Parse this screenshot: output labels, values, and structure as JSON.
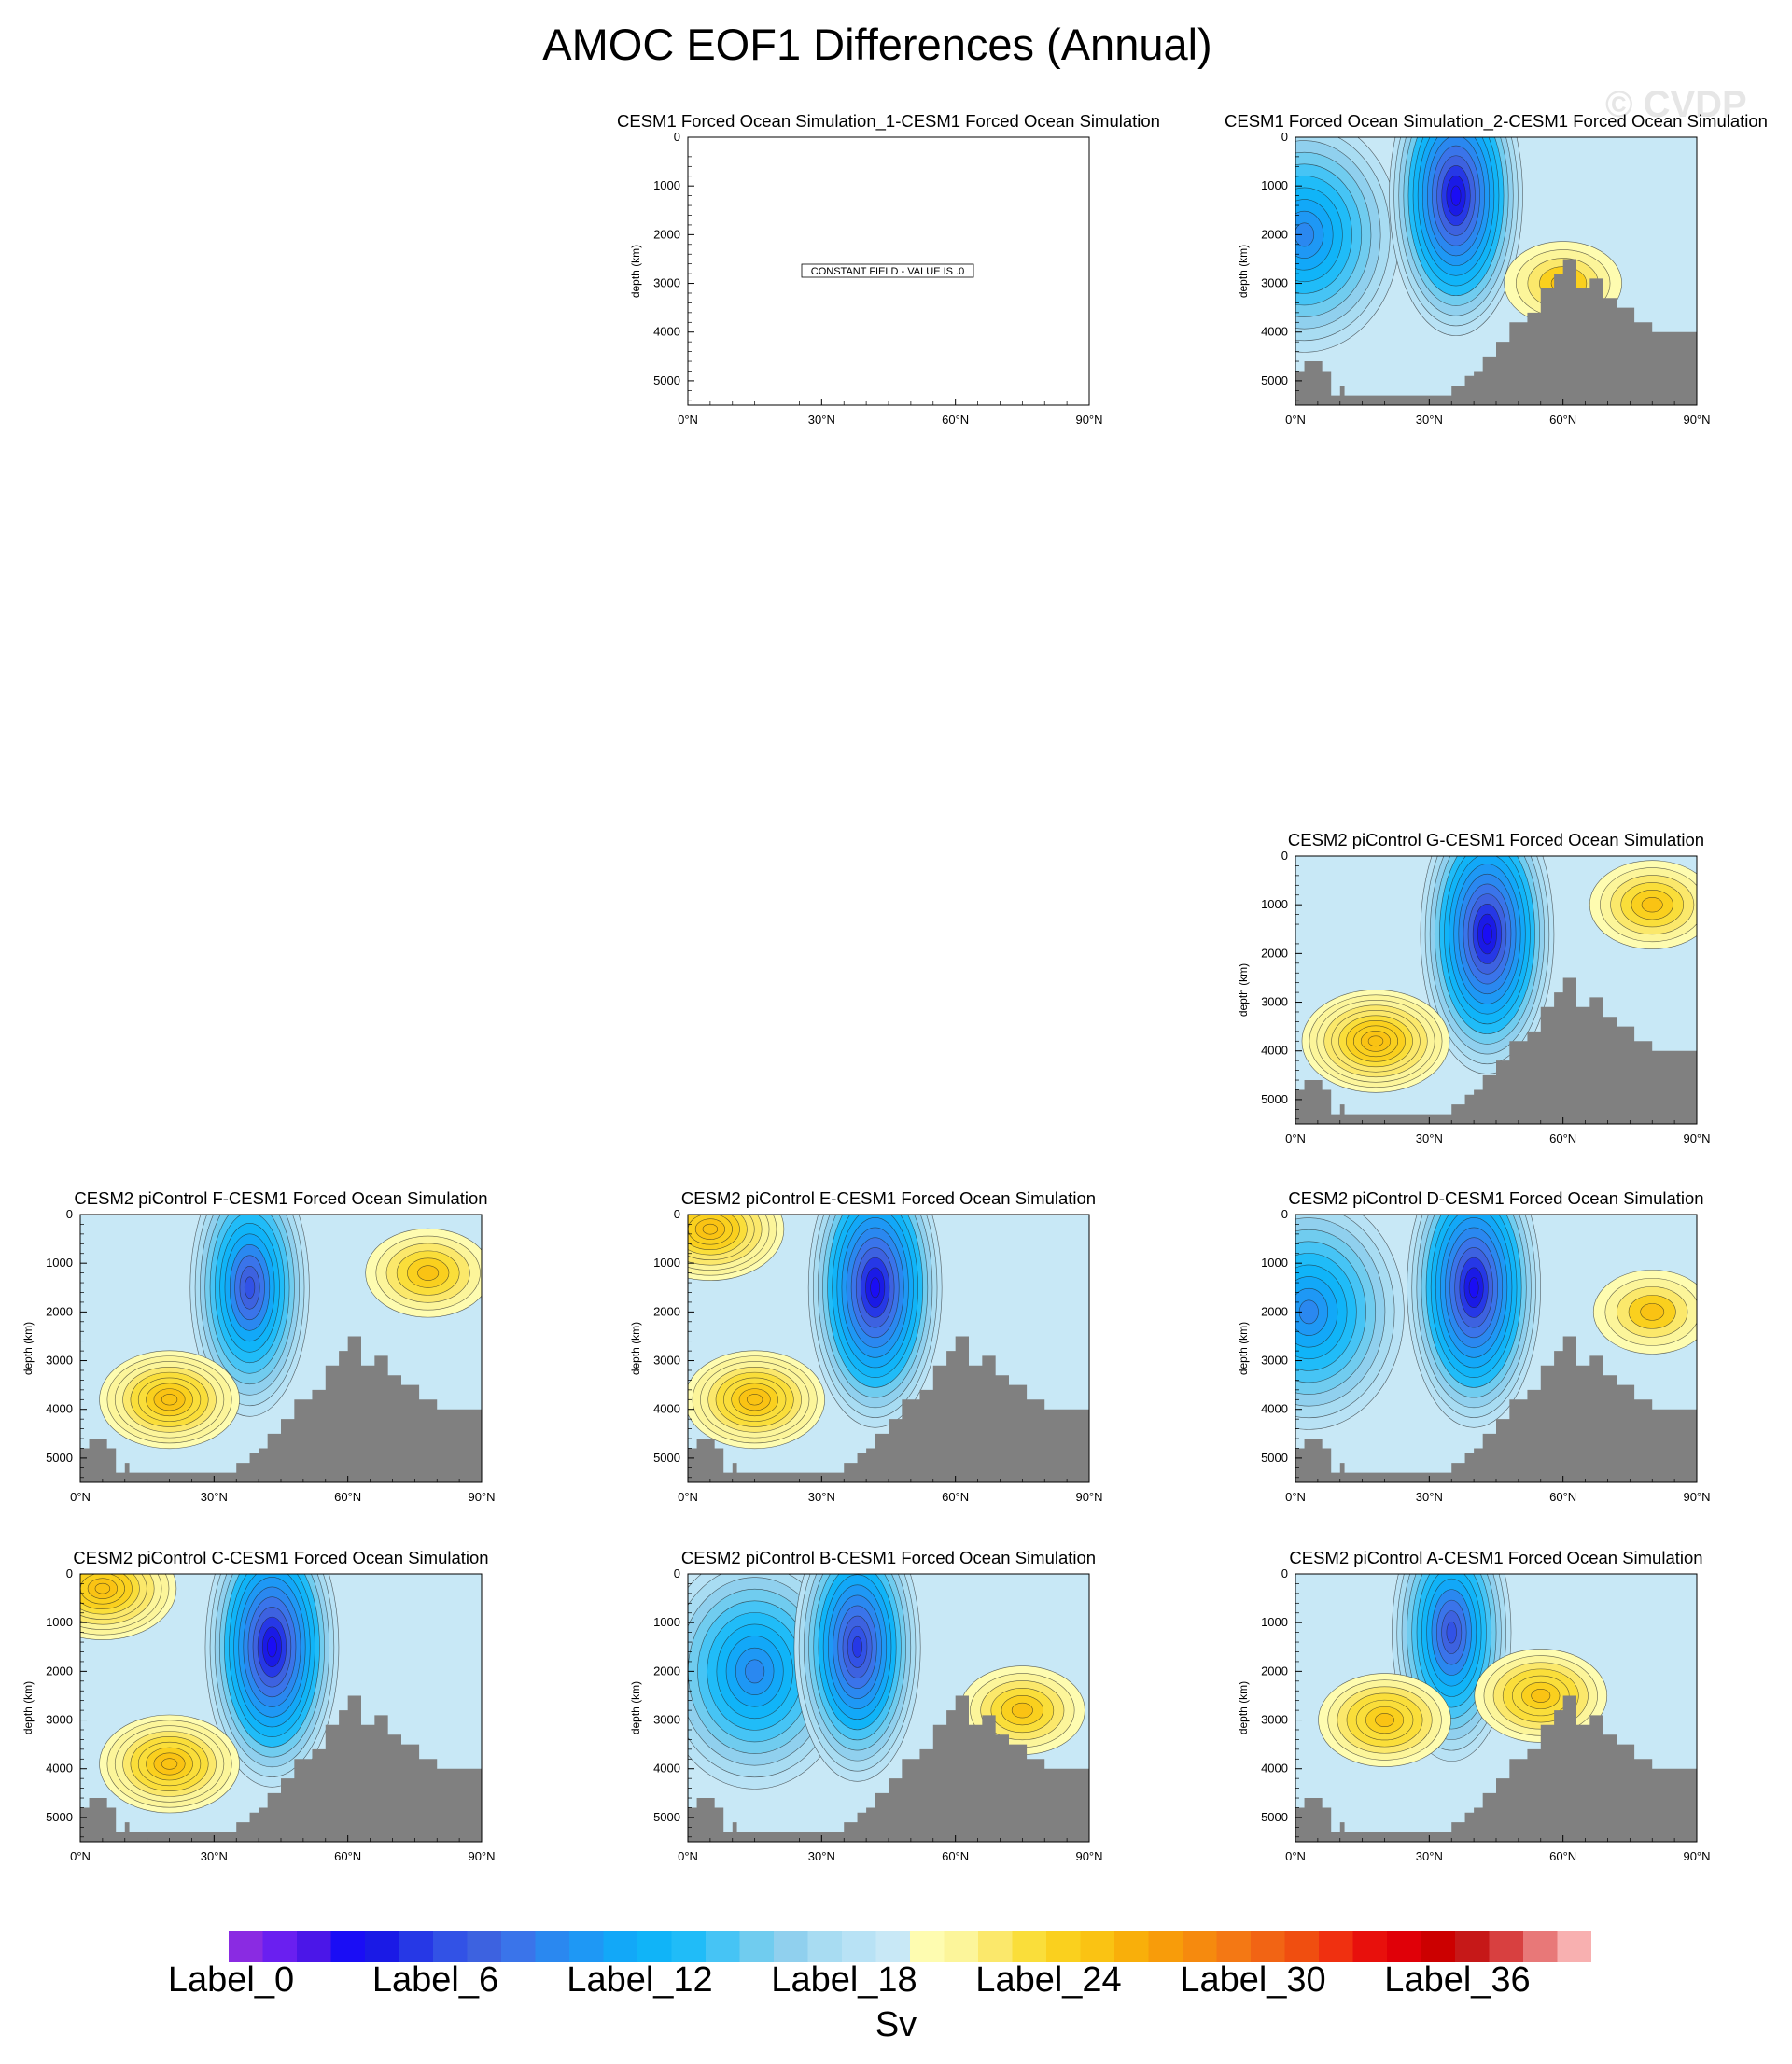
{
  "title": "AMOC EOF1 Differences (Annual)",
  "watermark": "© CVDP",
  "axes": {
    "ylabel": "depth (km)",
    "xticks": [
      "0°N",
      "30°N",
      "60°N",
      "90°N"
    ],
    "yticks": [
      "0",
      "1000",
      "2000",
      "3000",
      "4000",
      "5000"
    ],
    "xlim": [
      0,
      90
    ],
    "ylim": [
      0,
      5500
    ]
  },
  "colorbar": {
    "units": "Sv",
    "labels": [
      "Label_0",
      "Label_6",
      "Label_12",
      "Label_18",
      "Label_24",
      "Label_30",
      "Label_36"
    ],
    "colors": [
      "#8a2be2",
      "#6a1ff0",
      "#4b16e8",
      "#1a0df5",
      "#1a1ae6",
      "#2638e6",
      "#3252e6",
      "#3d62e0",
      "#3a74ea",
      "#2a88f0",
      "#1e98f5",
      "#12a8f8",
      "#10b4f8",
      "#20bcf8",
      "#46c4f5",
      "#70ccef",
      "#90d0ee",
      "#a8dcf2",
      "#b8e2f5",
      "#c8e8f6",
      "#fefcb0",
      "#fcf59a",
      "#fbe86b",
      "#fade3a",
      "#fad01e",
      "#fac313",
      "#f9af0a",
      "#f89c0a",
      "#f68a0e",
      "#f47814",
      "#f26414",
      "#f04e10",
      "#f03010",
      "#e8100c",
      "#e00008",
      "#cc0000",
      "#c61818",
      "#d84040",
      "#e87878",
      "#f8b0b0"
    ]
  },
  "chart_data": [
    {
      "type": "heatmap",
      "title": "CESM1 Forced Ocean Simulation_1-CESM1 Forced Ocean Simulation",
      "constant_field": true,
      "annotation": "CONSTANT FIELD - VALUE IS .0",
      "xlim": [
        0,
        90
      ],
      "ylim": [
        5500,
        0
      ],
      "ylabel": "depth (km)"
    },
    {
      "type": "heatmap",
      "title": "CESM1 Forced Ocean Simulation_2-CESM1 Forced Ocean Simulation",
      "xlim": [
        0,
        90
      ],
      "ylim": [
        5500,
        0
      ],
      "ylabel": "depth (km)",
      "features": [
        {
          "lat": 2,
          "depth": 2000,
          "sign": "negative",
          "strength": 0.6
        },
        {
          "lat": 36,
          "depth": 1200,
          "sign": "negative",
          "strength": 1.0
        },
        {
          "lat": 60,
          "depth": 3000,
          "sign": "positive",
          "strength": 0.2
        }
      ]
    },
    {
      "type": "heatmap",
      "title": "CESM2 piControl G-CESM1 Forced Ocean Simulation",
      "xlim": [
        0,
        90
      ],
      "ylim": [
        5500,
        0
      ],
      "ylabel": "depth (km)",
      "features": [
        {
          "lat": 43,
          "depth": 1600,
          "sign": "negative",
          "strength": 1.0
        },
        {
          "lat": 18,
          "depth": 3800,
          "sign": "positive",
          "strength": 0.6
        },
        {
          "lat": 80,
          "depth": 1000,
          "sign": "positive",
          "strength": 0.3
        }
      ]
    },
    {
      "type": "heatmap",
      "title": "CESM2 piControl F-CESM1 Forced Ocean Simulation",
      "xlim": [
        0,
        90
      ],
      "ylim": [
        5500,
        0
      ],
      "ylabel": "depth (km)",
      "features": [
        {
          "lat": 38,
          "depth": 1500,
          "sign": "negative",
          "strength": 0.8
        },
        {
          "lat": 20,
          "depth": 3800,
          "sign": "positive",
          "strength": 0.5
        },
        {
          "lat": 78,
          "depth": 1200,
          "sign": "positive",
          "strength": 0.3
        }
      ]
    },
    {
      "type": "heatmap",
      "title": "CESM2 piControl E-CESM1 Forced Ocean Simulation",
      "xlim": [
        0,
        90
      ],
      "ylim": [
        5500,
        0
      ],
      "ylabel": "depth (km)",
      "features": [
        {
          "lat": 42,
          "depth": 1500,
          "sign": "negative",
          "strength": 1.0
        },
        {
          "lat": 15,
          "depth": 3800,
          "sign": "positive",
          "strength": 0.5
        },
        {
          "lat": 5,
          "depth": 300,
          "sign": "positive",
          "strength": 0.6
        }
      ]
    },
    {
      "type": "heatmap",
      "title": "CESM2 piControl D-CESM1 Forced Ocean Simulation",
      "xlim": [
        0,
        90
      ],
      "ylim": [
        5500,
        0
      ],
      "ylabel": "depth (km)",
      "features": [
        {
          "lat": 3,
          "depth": 2000,
          "sign": "negative",
          "strength": 0.6
        },
        {
          "lat": 40,
          "depth": 1500,
          "sign": "negative",
          "strength": 1.0
        },
        {
          "lat": 80,
          "depth": 2000,
          "sign": "positive",
          "strength": 0.2
        }
      ]
    },
    {
      "type": "heatmap",
      "title": "CESM2 piControl C-CESM1 Forced Ocean Simulation",
      "xlim": [
        0,
        90
      ],
      "ylim": [
        5500,
        0
      ],
      "ylabel": "depth (km)",
      "features": [
        {
          "lat": 43,
          "depth": 1500,
          "sign": "negative",
          "strength": 1.0
        },
        {
          "lat": 5,
          "depth": 300,
          "sign": "positive",
          "strength": 0.6
        },
        {
          "lat": 20,
          "depth": 3900,
          "sign": "positive",
          "strength": 0.5
        }
      ]
    },
    {
      "type": "heatmap",
      "title": "CESM2 piControl B-CESM1 Forced Ocean Simulation",
      "xlim": [
        0,
        90
      ],
      "ylim": [
        5500,
        0
      ],
      "ylabel": "depth (km)",
      "features": [
        {
          "lat": 15,
          "depth": 2000,
          "sign": "negative",
          "strength": 0.6
        },
        {
          "lat": 38,
          "depth": 1500,
          "sign": "negative",
          "strength": 0.9
        },
        {
          "lat": 75,
          "depth": 2800,
          "sign": "positive",
          "strength": 0.3
        }
      ]
    },
    {
      "type": "heatmap",
      "title": "CESM2 piControl A-CESM1 Forced Ocean Simulation",
      "xlim": [
        0,
        90
      ],
      "ylim": [
        5500,
        0
      ],
      "ylabel": "depth (km)",
      "features": [
        {
          "lat": 35,
          "depth": 1200,
          "sign": "negative",
          "strength": 0.8
        },
        {
          "lat": 20,
          "depth": 3000,
          "sign": "positive",
          "strength": 0.4
        },
        {
          "lat": 55,
          "depth": 2500,
          "sign": "positive",
          "strength": 0.4
        }
      ]
    }
  ]
}
